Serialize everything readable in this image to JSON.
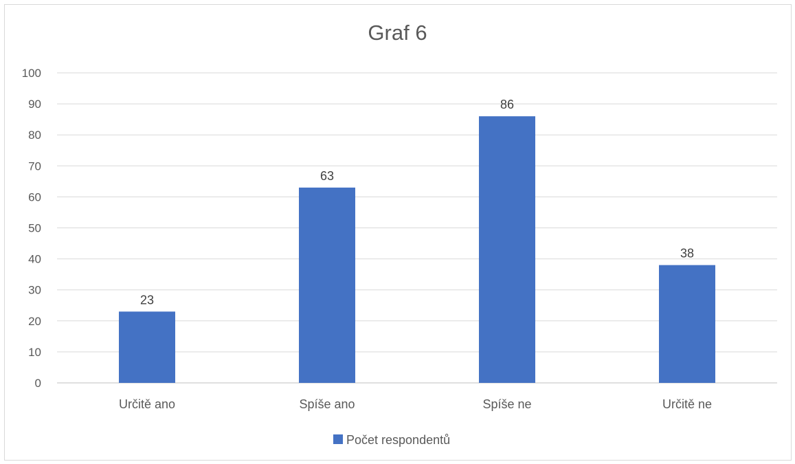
{
  "chart_data": {
    "type": "bar",
    "title": "Graf 6",
    "categories": [
      "Určitě ano",
      "Spíše ano",
      "Spíše ne",
      "Určitě ne"
    ],
    "series": [
      {
        "name": "Počet respondentů",
        "values": [
          23,
          63,
          86,
          38
        ],
        "color": "#4472c4"
      }
    ],
    "ylim": [
      0,
      100
    ],
    "yticks": [
      0,
      10,
      20,
      30,
      40,
      50,
      60,
      70,
      80,
      90,
      100
    ],
    "grid": true,
    "legend_position": "bottom",
    "data_labels": true
  }
}
